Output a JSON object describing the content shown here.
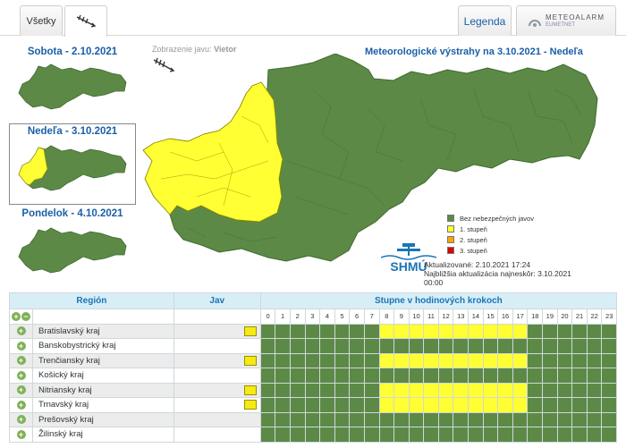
{
  "tabs": {
    "all": "Všetky",
    "legend": "Legenda",
    "meteoalarm": "METEOALARM",
    "eumetnet": "EUMETNET"
  },
  "days": [
    {
      "label": "Sobota - 2.10.2021"
    },
    {
      "label": "Nedeľa - 3.10.2021"
    },
    {
      "label": "Pondelok - 4.10.2021"
    }
  ],
  "phenomenon": {
    "prefix": "Zobrazenie javu:",
    "name": "Vietor"
  },
  "map_title": "Meteorologické výstrahy na 3.10.2021 - Nedeľa",
  "legend": [
    {
      "label": "Bez nebezpečných javov",
      "color": "#5c8a46"
    },
    {
      "label": "1. stupeň",
      "color": "#ffff33"
    },
    {
      "label": "2. stupeň",
      "color": "#ffa500"
    },
    {
      "label": "3. stupeň",
      "color": "#e00000"
    }
  ],
  "logo_text": "SHMÚ",
  "updated": {
    "line1": "Aktualizované: 2.10.2021 17:24",
    "line2": "Najbližšia aktualizácia najneskôr: 3.10.2021",
    "line3": "00:00"
  },
  "table": {
    "col_region": "Región",
    "col_jav": "Jav",
    "col_steps": "Stupne v hodinových krokoch",
    "hours": [
      "0",
      "1",
      "2",
      "3",
      "4",
      "5",
      "6",
      "7",
      "8",
      "9",
      "10",
      "11",
      "12",
      "13",
      "14",
      "15",
      "16",
      "17",
      "18",
      "19",
      "20",
      "21",
      "22",
      "23"
    ],
    "rows": [
      {
        "region": "Bratislavský kraj",
        "icon": true,
        "levels": [
          0,
          0,
          0,
          0,
          0,
          0,
          0,
          0,
          1,
          1,
          1,
          1,
          1,
          1,
          1,
          1,
          1,
          1,
          0,
          0,
          0,
          0,
          0,
          0
        ]
      },
      {
        "region": "Banskobystrický kraj",
        "icon": false,
        "levels": [
          0,
          0,
          0,
          0,
          0,
          0,
          0,
          0,
          0,
          0,
          0,
          0,
          0,
          0,
          0,
          0,
          0,
          0,
          0,
          0,
          0,
          0,
          0,
          0
        ]
      },
      {
        "region": "Trenčiansky kraj",
        "icon": true,
        "levels": [
          0,
          0,
          0,
          0,
          0,
          0,
          0,
          0,
          1,
          1,
          1,
          1,
          1,
          1,
          1,
          1,
          1,
          1,
          0,
          0,
          0,
          0,
          0,
          0
        ]
      },
      {
        "region": "Košický kraj",
        "icon": false,
        "levels": [
          0,
          0,
          0,
          0,
          0,
          0,
          0,
          0,
          0,
          0,
          0,
          0,
          0,
          0,
          0,
          0,
          0,
          0,
          0,
          0,
          0,
          0,
          0,
          0
        ]
      },
      {
        "region": "Nitriansky kraj",
        "icon": true,
        "levels": [
          0,
          0,
          0,
          0,
          0,
          0,
          0,
          0,
          1,
          1,
          1,
          1,
          1,
          1,
          1,
          1,
          1,
          1,
          0,
          0,
          0,
          0,
          0,
          0
        ]
      },
      {
        "region": "Trnavský kraj",
        "icon": true,
        "levels": [
          0,
          0,
          0,
          0,
          0,
          0,
          0,
          0,
          1,
          1,
          1,
          1,
          1,
          1,
          1,
          1,
          1,
          1,
          0,
          0,
          0,
          0,
          0,
          0
        ]
      },
      {
        "region": "Prešovský kraj",
        "icon": false,
        "levels": [
          0,
          0,
          0,
          0,
          0,
          0,
          0,
          0,
          0,
          0,
          0,
          0,
          0,
          0,
          0,
          0,
          0,
          0,
          0,
          0,
          0,
          0,
          0,
          0
        ]
      },
      {
        "region": "Žilinský kraj",
        "icon": false,
        "levels": [
          0,
          0,
          0,
          0,
          0,
          0,
          0,
          0,
          0,
          0,
          0,
          0,
          0,
          0,
          0,
          0,
          0,
          0,
          0,
          0,
          0,
          0,
          0,
          0
        ]
      }
    ]
  }
}
